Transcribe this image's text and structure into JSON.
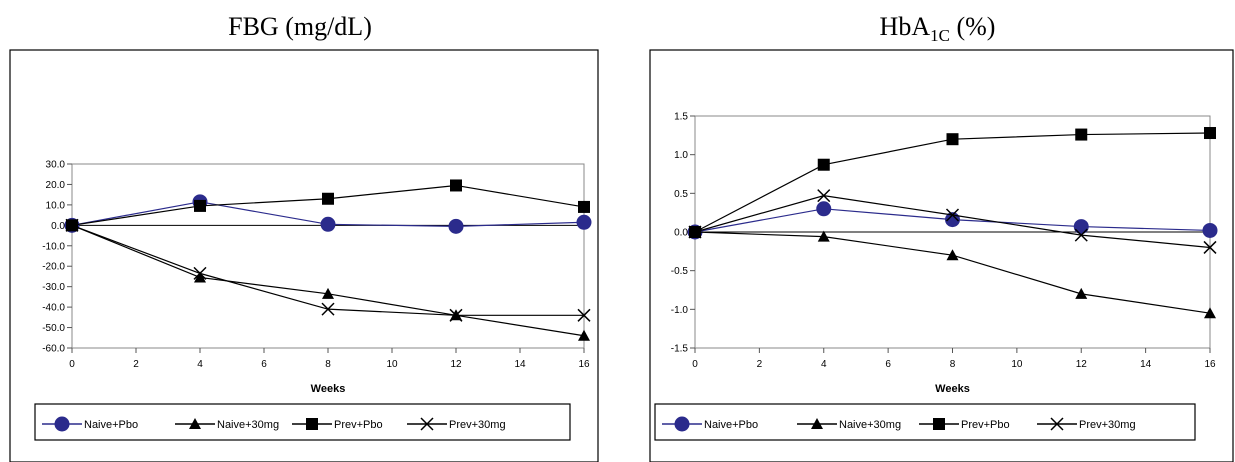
{
  "chart_data": [
    {
      "type": "line",
      "title_main": "FBG (mg/dL)",
      "title_sub": "",
      "title_rest": "",
      "xlabel": "Weeks",
      "ylabel": "",
      "x": [
        0,
        4,
        8,
        12,
        16
      ],
      "xlim": [
        0,
        16
      ],
      "xticks": [
        0,
        2,
        4,
        6,
        8,
        10,
        12,
        14,
        16
      ],
      "ylim": [
        -60,
        30
      ],
      "yticks": [
        30,
        20,
        10,
        0,
        -10,
        -20,
        -30,
        -40,
        -50,
        -60
      ],
      "ytick_labels": [
        "30.0",
        "20.0",
        "10.0",
        "0.0",
        "-10.0",
        "-20.0",
        "-30.0",
        "-40.0",
        "-50.0",
        "-60.0"
      ],
      "grid": false,
      "legend_position": "bottom",
      "series": [
        {
          "name": "Naive+Pbo",
          "marker": "circle",
          "color": "#2b2b8c",
          "values": [
            0,
            11.5,
            0.5,
            -0.5,
            1.5
          ]
        },
        {
          "name": "Naive+30mg",
          "marker": "triangle",
          "color": "#000000",
          "values": [
            0,
            -25.5,
            -33.5,
            -44,
            -54
          ]
        },
        {
          "name": "Prev+Pbo",
          "marker": "square",
          "color": "#000000",
          "values": [
            0,
            9.5,
            13,
            19.5,
            9
          ]
        },
        {
          "name": "Prev+30mg",
          "marker": "x",
          "color": "#000000",
          "values": [
            0,
            -23.5,
            -41,
            -44,
            -44
          ]
        }
      ]
    },
    {
      "type": "line",
      "title_main": "HbA",
      "title_sub": "1C",
      "title_rest": " (%)",
      "xlabel": "Weeks",
      "ylabel": "",
      "x": [
        0,
        4,
        8,
        12,
        16
      ],
      "xlim": [
        0,
        16
      ],
      "xticks": [
        0,
        2,
        4,
        6,
        8,
        10,
        12,
        14,
        16
      ],
      "ylim": [
        -1.5,
        1.5
      ],
      "yticks": [
        1.5,
        1.0,
        0.5,
        0.0,
        -0.5,
        -1.0,
        -1.5
      ],
      "ytick_labels": [
        "1.5",
        "1.0",
        "0.5",
        "0.0",
        "-0.5",
        "-1.0",
        "-1.5"
      ],
      "grid": false,
      "legend_position": "bottom",
      "series": [
        {
          "name": "Naive+Pbo",
          "marker": "circle",
          "color": "#2b2b8c",
          "values": [
            0,
            0.3,
            0.16,
            0.07,
            0.02
          ]
        },
        {
          "name": "Naive+30mg",
          "marker": "triangle",
          "color": "#000000",
          "values": [
            0,
            -0.06,
            -0.3,
            -0.8,
            -1.05
          ]
        },
        {
          "name": "Prev+Pbo",
          "marker": "square",
          "color": "#000000",
          "values": [
            0,
            0.87,
            1.2,
            1.26,
            1.28
          ]
        },
        {
          "name": "Prev+30mg",
          "marker": "x",
          "color": "#000000",
          "values": [
            0,
            0.47,
            0.22,
            -0.04,
            -0.2
          ]
        }
      ]
    }
  ]
}
